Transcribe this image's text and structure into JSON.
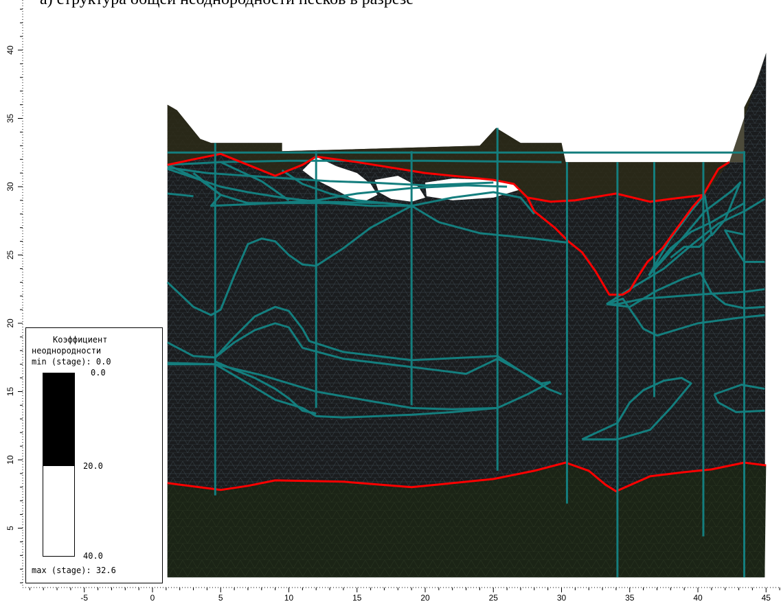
{
  "title": "а) структура общей неоднородности песков в разрезе",
  "legend": {
    "title_line1": "Коэффициент",
    "title_line2": "неоднородности",
    "min_label": "min (stage): 0.0",
    "max_label": "max (stage): 32.6",
    "scale_values": [
      "0.0",
      "20.0",
      "40.0"
    ]
  },
  "chart_data": {
    "type": "cross-section",
    "x_ticks": [
      "-5",
      "0",
      "5",
      "10",
      "15",
      "20",
      "25",
      "30",
      "35",
      "40",
      "45"
    ],
    "y_ticks": [
      "5",
      "10",
      "15",
      "20",
      "25",
      "30",
      "35",
      "40"
    ],
    "xlim": [
      -10,
      46
    ],
    "ylim": [
      1,
      44
    ],
    "colors": {
      "mesh_fill": "#1a1c1e",
      "upper_fill": "#2d2a18",
      "lower_fill": "#1b2416",
      "boundary": "#ff0000",
      "contour": "#147e7e",
      "lens": "#ffffff"
    },
    "surface": [
      [
        1.1,
        36.0
      ],
      [
        1.8,
        35.6
      ],
      [
        3.5,
        33.5
      ],
      [
        4.3,
        33.2
      ],
      [
        9.5,
        33.2
      ],
      [
        9.5,
        32.6
      ],
      [
        24.0,
        33.0
      ],
      [
        25.2,
        34.3
      ],
      [
        27.0,
        33.2
      ],
      [
        30.0,
        33.2
      ],
      [
        30.3,
        31.8
      ],
      [
        43.4,
        31.8
      ],
      [
        43.4,
        35.8
      ],
      [
        44.3,
        37.6
      ],
      [
        45.0,
        39.8
      ]
    ],
    "boundary_top": [
      [
        1.1,
        31.6
      ],
      [
        3.0,
        32.0
      ],
      [
        5.0,
        32.4
      ],
      [
        7.0,
        31.6
      ],
      [
        9.0,
        30.8
      ],
      [
        11.0,
        31.6
      ],
      [
        12.0,
        32.2
      ],
      [
        15.0,
        31.8
      ],
      [
        20.0,
        31.0
      ],
      [
        25.0,
        30.5
      ],
      [
        26.5,
        30.2
      ],
      [
        27.5,
        29.2
      ],
      [
        28.0,
        28.2
      ],
      [
        29.5,
        27.0
      ],
      [
        30.5,
        26.0
      ],
      [
        31.5,
        25.2
      ],
      [
        32.5,
        23.8
      ],
      [
        33.5,
        22.1
      ],
      [
        34.5,
        22.1
      ],
      [
        35.0,
        22.4
      ],
      [
        35.6,
        23.4
      ],
      [
        36.3,
        24.5
      ],
      [
        37.4,
        25.5
      ],
      [
        38.5,
        27.0
      ],
      [
        39.6,
        28.5
      ],
      [
        40.4,
        29.4
      ],
      [
        41.5,
        31.3
      ],
      [
        42.3,
        31.8
      ]
    ],
    "boundary_top_right": [
      [
        27.5,
        29.2
      ],
      [
        29.2,
        28.9
      ],
      [
        31.0,
        29.0
      ],
      [
        34.0,
        29.5
      ],
      [
        36.5,
        28.9
      ],
      [
        38.0,
        29.1
      ],
      [
        40.5,
        29.4
      ]
    ],
    "boundary_bottom": [
      [
        1.1,
        8.3
      ],
      [
        5.0,
        7.8
      ],
      [
        7.0,
        8.1
      ],
      [
        9.0,
        8.5
      ],
      [
        14.0,
        8.4
      ],
      [
        19.0,
        8.0
      ],
      [
        25.0,
        8.6
      ],
      [
        28.0,
        9.2
      ],
      [
        30.3,
        9.8
      ],
      [
        32.0,
        9.2
      ],
      [
        33.2,
        8.2
      ],
      [
        34.0,
        7.7
      ],
      [
        36.5,
        8.8
      ],
      [
        39.0,
        9.1
      ],
      [
        41.0,
        9.3
      ],
      [
        43.4,
        9.8
      ],
      [
        45.0,
        9.6
      ]
    ],
    "wells_x": [
      4.6,
      12.0,
      19.0,
      25.3,
      30.4,
      34.1,
      36.8,
      40.4,
      43.4
    ],
    "lenses": [
      [
        [
          11.0,
          31.2
        ],
        [
          12.0,
          32.2
        ],
        [
          13.5,
          31.5
        ],
        [
          15.0,
          31.0
        ],
        [
          16.0,
          30.2
        ],
        [
          16.5,
          29.4
        ],
        [
          15.5,
          28.9
        ],
        [
          14.5,
          29.2
        ],
        [
          13.0,
          30.0
        ],
        [
          11.8,
          30.6
        ]
      ],
      [
        [
          16.3,
          30.5
        ],
        [
          18.0,
          30.8
        ],
        [
          19.5,
          30.0
        ],
        [
          20.0,
          29.2
        ],
        [
          19.0,
          28.9
        ],
        [
          17.5,
          29.1
        ],
        [
          16.6,
          29.6
        ]
      ],
      [
        [
          20.0,
          30.3
        ],
        [
          22.0,
          30.6
        ],
        [
          25.0,
          30.5
        ],
        [
          26.5,
          30.2
        ],
        [
          27.0,
          29.8
        ],
        [
          25.0,
          29.2
        ],
        [
          22.0,
          29.0
        ],
        [
          20.1,
          29.3
        ]
      ]
    ]
  }
}
